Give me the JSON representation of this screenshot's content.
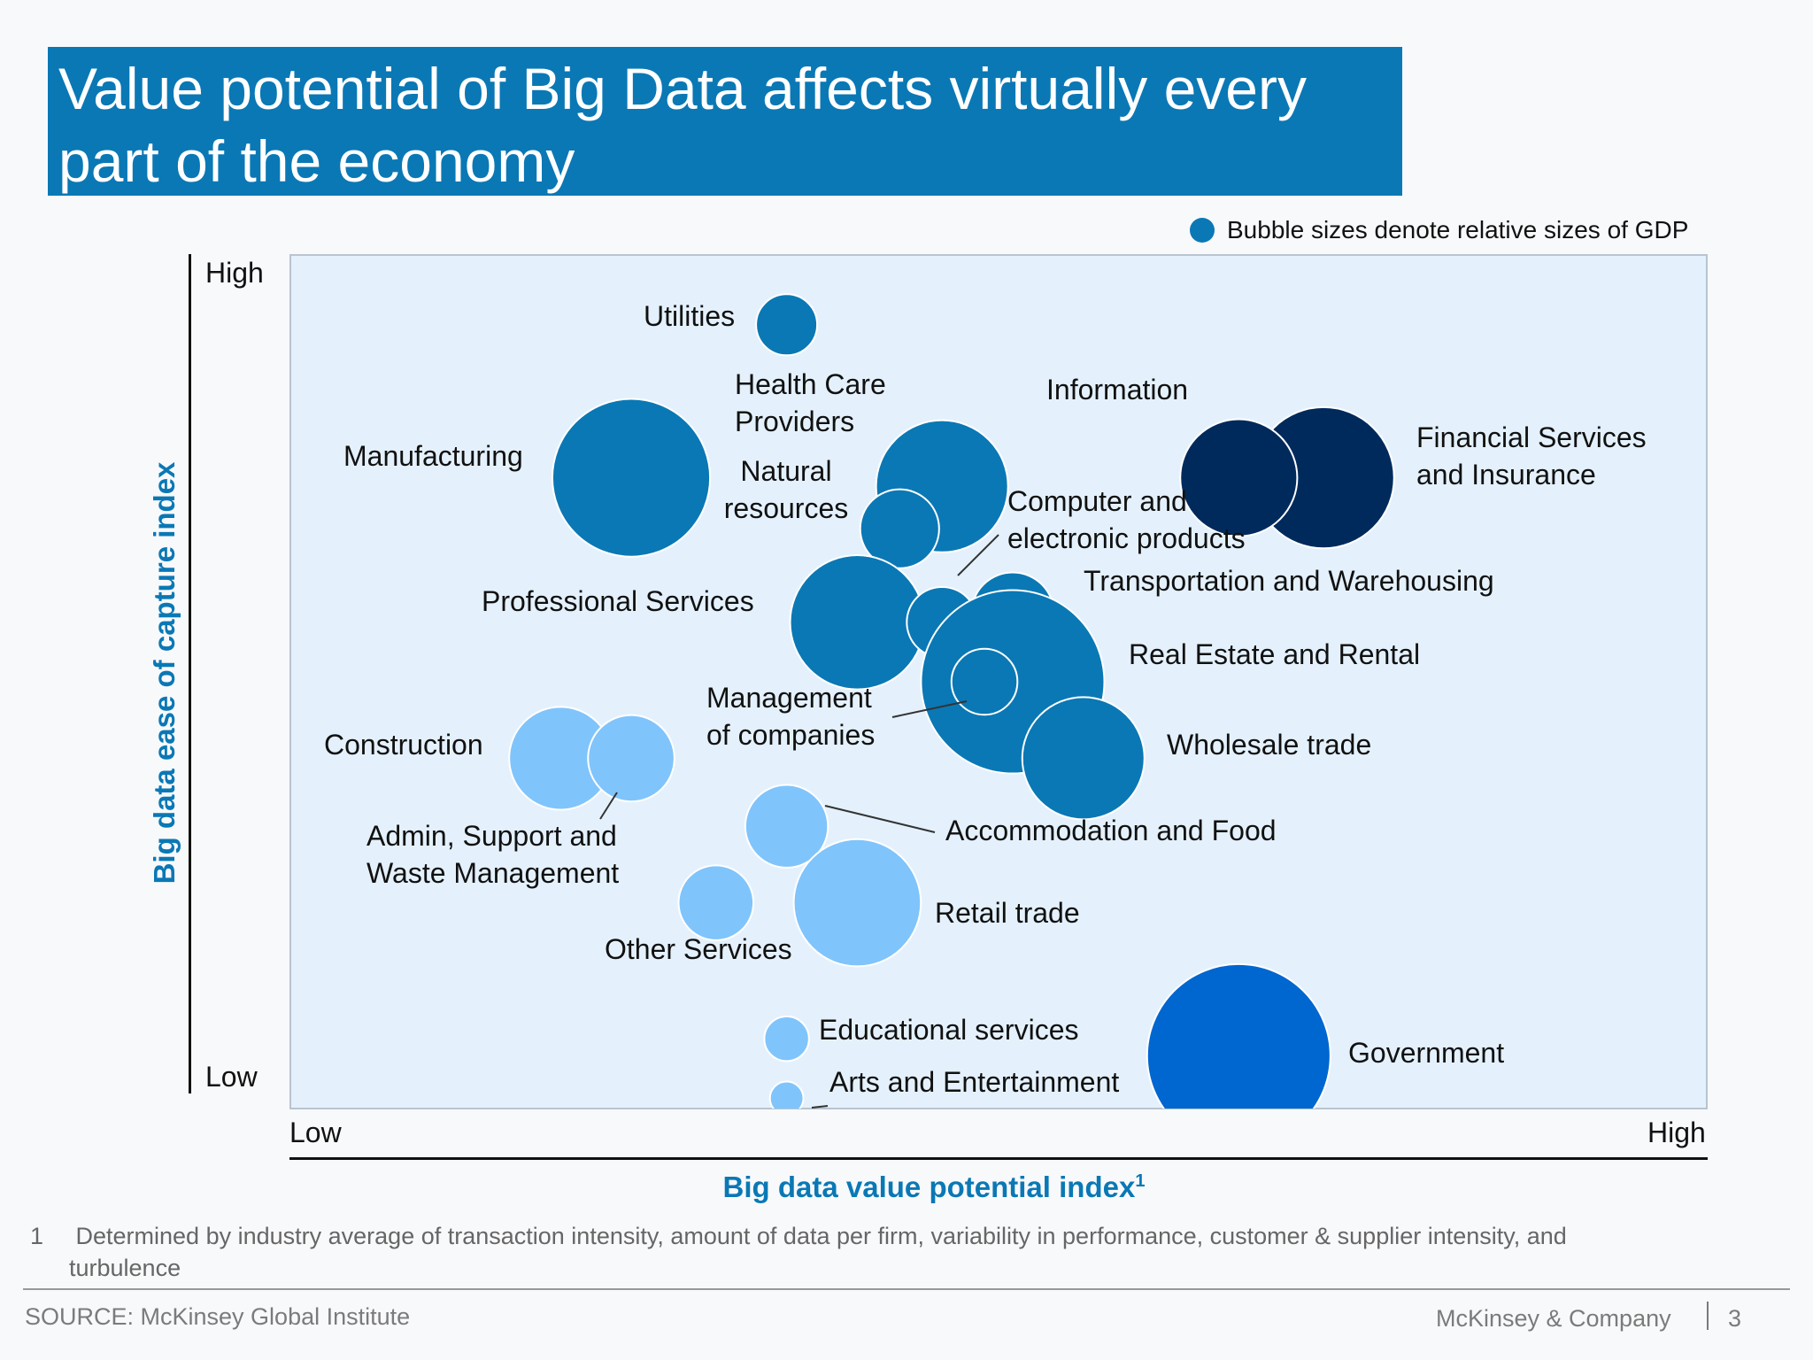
{
  "title": "Value potential of Big Data affects virtually every part of the economy",
  "legend_note": "Bubble sizes denote relative sizes of GDP",
  "y_axis": {
    "label": "Big data ease of capture index",
    "low": "Low",
    "high": "High"
  },
  "x_axis": {
    "label": "Big data value potential index",
    "label_sup": "1",
    "low": "Low",
    "high": "High"
  },
  "footnote": {
    "number": "1",
    "text": "Determined by industry average of transaction intensity, amount of data per firm, variability in performance, customer & supplier intensity, and  turbulence"
  },
  "source": "SOURCE: McKinsey Global Institute",
  "brand": "McKinsey & Company",
  "page_number": "3",
  "colors": {
    "title_bg": "#0a78b5",
    "mid_blue": "#0a78b5",
    "dark_navy": "#002a5c",
    "light_blue": "#80c4fc",
    "bright_blue": "#0066d0"
  },
  "chart_data": {
    "type": "scatter",
    "subtype": "bubble",
    "xlabel": "Big data value potential index",
    "ylabel": "Big data ease of capture index",
    "x_ticks": [
      "Low",
      "High"
    ],
    "y_ticks": [
      "Low",
      "High"
    ],
    "xlim": [
      0,
      100
    ],
    "ylim": [
      0,
      100
    ],
    "size_encoding": "relative sizes of GDP",
    "points": [
      {
        "name": "Utilities",
        "x": 35,
        "y": 92,
        "gdp": 0.3,
        "color": "#0a78b5"
      },
      {
        "name": "Health Care Providers",
        "x": 46,
        "y": 73,
        "gdp": 1.4,
        "color": "#0a78b5"
      },
      {
        "name": "Manufacturing",
        "x": 24,
        "y": 74,
        "gdp": 2.0,
        "color": "#0a78b5"
      },
      {
        "name": "Natural resources",
        "x": 43,
        "y": 68,
        "gdp": 0.5,
        "color": "#0a78b5"
      },
      {
        "name": "Financial Services and Insurance",
        "x": 73,
        "y": 74,
        "gdp": 1.6,
        "color": "#002a5c"
      },
      {
        "name": "Information",
        "x": 67,
        "y": 74,
        "gdp": 1.1,
        "color": "#002a5c"
      },
      {
        "name": "Professional Services",
        "x": 40,
        "y": 57,
        "gdp": 1.45,
        "color": "#0a78b5"
      },
      {
        "name": "Computer and electronic products",
        "x": 46,
        "y": 57,
        "gdp": 0.4,
        "color": "#0a78b5"
      },
      {
        "name": "Transportation and Warehousing",
        "x": 51,
        "y": 58,
        "gdp": 0.55,
        "color": "#0a78b5"
      },
      {
        "name": "Real Estate and Rental",
        "x": 51,
        "y": 50,
        "gdp": 2.7,
        "color": "#0a78b5"
      },
      {
        "name": "Management of companies",
        "x": 49,
        "y": 50,
        "gdp": 0.35,
        "color": "#0a78b5"
      },
      {
        "name": "Wholesale trade",
        "x": 56,
        "y": 41,
        "gdp": 1.2,
        "color": "#0a78b5"
      },
      {
        "name": "Construction",
        "x": 19,
        "y": 41,
        "gdp": 0.85,
        "color": "#80c4fc"
      },
      {
        "name": "Admin, Support and Waste Management",
        "x": 24,
        "y": 41,
        "gdp": 0.6,
        "color": "#80c4fc"
      },
      {
        "name": "Accommodation and Food",
        "x": 35,
        "y": 33,
        "gdp": 0.55,
        "color": "#80c4fc"
      },
      {
        "name": "Retail trade",
        "x": 40,
        "y": 24,
        "gdp": 1.3,
        "color": "#80c4fc"
      },
      {
        "name": "Other Services",
        "x": 30,
        "y": 24,
        "gdp": 0.45,
        "color": "#80c4fc"
      },
      {
        "name": "Educational services",
        "x": 35,
        "y": 8,
        "gdp": 0.16,
        "color": "#80c4fc"
      },
      {
        "name": "Arts and Entertainment",
        "x": 35,
        "y": 1,
        "gdp": 0.09,
        "color": "#80c4fc"
      },
      {
        "name": "Government",
        "x": 67,
        "y": 6,
        "gdp": 2.7,
        "color": "#0066d0"
      }
    ]
  }
}
